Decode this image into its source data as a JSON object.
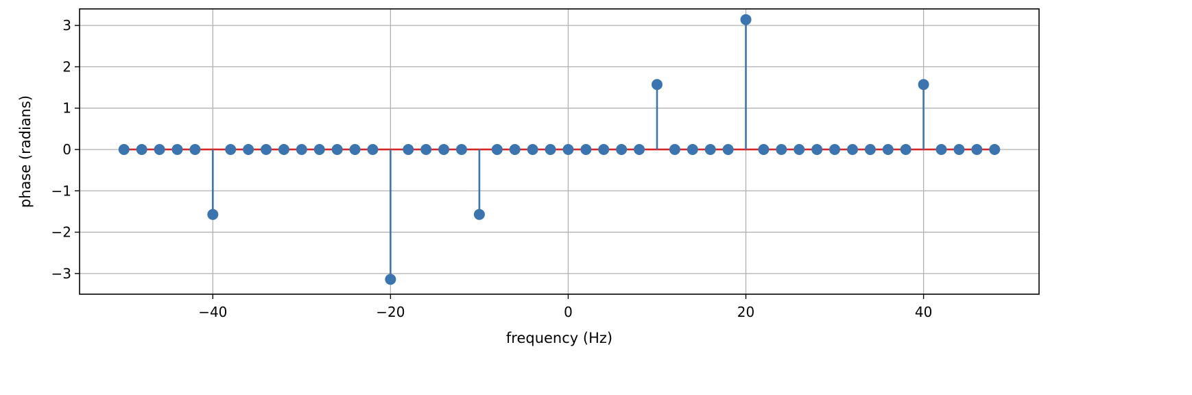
{
  "chart_data": {
    "type": "stem",
    "title": "",
    "xlabel": "frequency (Hz)",
    "ylabel": "phase (radians)",
    "xlim": [
      -55,
      53
    ],
    "ylim": [
      -3.5,
      3.4
    ],
    "x_ticks": [
      -40,
      -20,
      0,
      20,
      40
    ],
    "x_tick_labels": [
      "−40",
      "−20",
      "0",
      "20",
      "40"
    ],
    "y_ticks": [
      -3,
      -2,
      -1,
      0,
      1,
      2,
      3
    ],
    "y_tick_labels": [
      "−3",
      "−2",
      "−1",
      "0",
      "1",
      "2",
      "3"
    ],
    "grid": true,
    "colors": {
      "stem": "#3a75b0",
      "marker": "#3a75b0",
      "baseline": "#d62728",
      "grid": "#b0b0b0"
    },
    "x": [
      -50,
      -48,
      -46,
      -44,
      -42,
      -40,
      -38,
      -36,
      -34,
      -32,
      -30,
      -28,
      -26,
      -24,
      -22,
      -20,
      -18,
      -16,
      -14,
      -12,
      -10,
      -8,
      -6,
      -4,
      -2,
      0,
      2,
      4,
      6,
      8,
      10,
      12,
      14,
      16,
      18,
      20,
      22,
      24,
      26,
      28,
      30,
      32,
      34,
      36,
      38,
      40,
      42,
      44,
      46,
      48
    ],
    "y": [
      0,
      0,
      0,
      0,
      0,
      -1.571,
      0,
      0,
      0,
      0,
      0,
      0,
      0,
      0,
      0,
      -3.1416,
      0,
      0,
      0,
      0,
      -1.571,
      0,
      0,
      0,
      0,
      0,
      0,
      0,
      0,
      0,
      1.571,
      0,
      0,
      0,
      0,
      3.1416,
      0,
      0,
      0,
      0,
      0,
      0,
      0,
      0,
      0,
      1.571,
      0,
      0,
      0,
      0
    ]
  }
}
